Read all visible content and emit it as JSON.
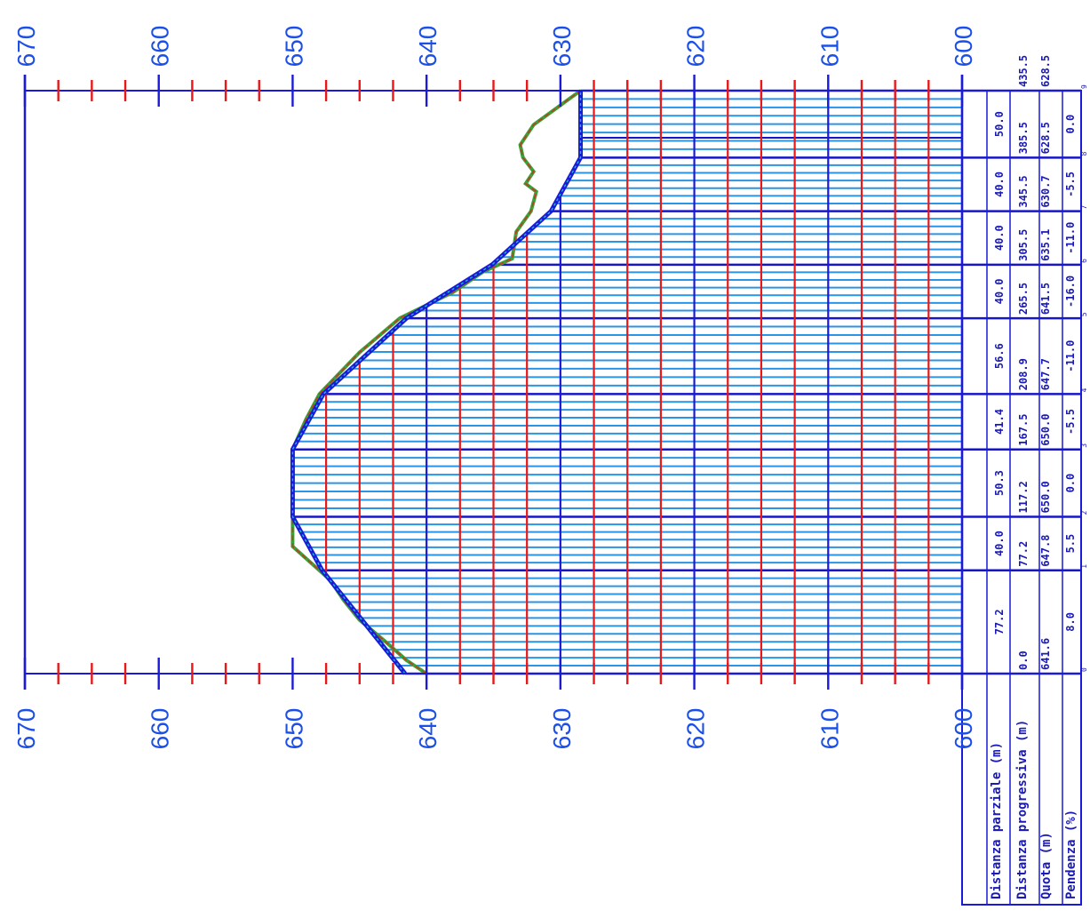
{
  "chart_data": {
    "type": "line",
    "orientation": "rotated-90",
    "elevation_axis": {
      "range": [
        600,
        670
      ],
      "major_ticks": [
        670,
        660,
        650,
        640,
        630,
        620,
        610,
        600
      ]
    },
    "distance_axis": {
      "range": [
        0,
        435.5
      ]
    },
    "table_headers": [
      "Distanza parziale (m)",
      "Distanza progressiva (m)",
      "Quota (m)",
      "Pendenza (%)"
    ],
    "stations": [
      {
        "index": "0",
        "progressive": "0.0",
        "quota": "641.6"
      },
      {
        "index": "1",
        "progressive": "77.2",
        "quota": "647.8"
      },
      {
        "index": "2",
        "progressive": "117.2",
        "quota": "650.0"
      },
      {
        "index": "3",
        "progressive": "167.5",
        "quota": "650.0"
      },
      {
        "index": "4",
        "progressive": "208.9",
        "quota": "647.7"
      },
      {
        "index": "5",
        "progressive": "265.5",
        "quota": "641.5"
      },
      {
        "index": "6",
        "progressive": "305.5",
        "quota": "635.1"
      },
      {
        "index": "7",
        "progressive": "345.5",
        "quota": "630.7"
      },
      {
        "index": "8",
        "progressive": "385.5",
        "quota": "628.5"
      },
      {
        "index": "9",
        "progressive": "435.5",
        "quota": "628.5"
      }
    ],
    "partial_distances": [
      "77.2",
      "40.0",
      "50.3",
      "41.4",
      "56.6",
      "40.0",
      "40.0",
      "40.0",
      "50.0"
    ],
    "slopes": [
      "8.0",
      "5.5",
      "0.0",
      "-5.5",
      "-11.0",
      "-16.0",
      "-11.0",
      "-5.5",
      "0.0"
    ],
    "series": [
      {
        "role": "design-profile",
        "x": [
          0,
          77.2,
          117.2,
          167.5,
          208.9,
          265.5,
          305.5,
          345.5,
          385.5,
          435.5
        ],
        "y": [
          641.6,
          647.8,
          650.0,
          650.0,
          647.7,
          641.5,
          635.1,
          630.7,
          628.5,
          628.5
        ]
      },
      {
        "role": "terrain-profile",
        "x": [
          0,
          10,
          25,
          40,
          55,
          70,
          95,
          117.2,
          140,
          167.5,
          190,
          208.9,
          240,
          265.5,
          285,
          300,
          310,
          330,
          345.5,
          360,
          366,
          375,
          385.5,
          395,
          410,
          435.5
        ],
        "y": [
          640.0,
          641.5,
          643.2,
          645.0,
          646.2,
          647.2,
          650.0,
          650.0,
          650.0,
          650.0,
          649.0,
          648.0,
          645.0,
          642.0,
          638.0,
          635.8,
          633.6,
          633.3,
          632.2,
          631.8,
          632.6,
          632.0,
          632.8,
          633.0,
          632.0,
          628.5
        ]
      }
    ]
  }
}
